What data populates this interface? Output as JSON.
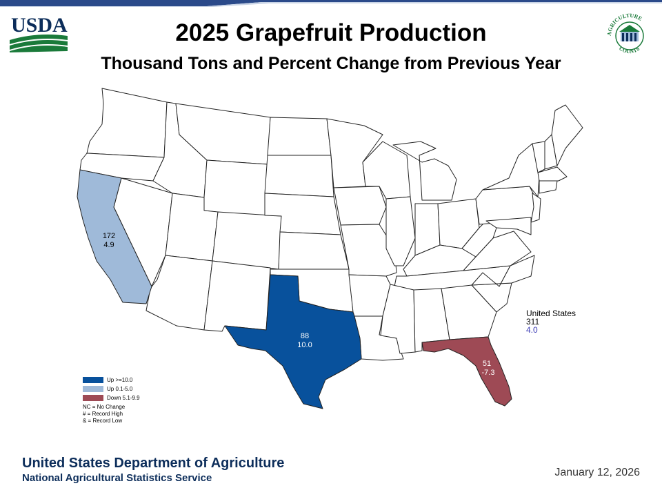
{
  "header": {
    "title": "2025 Grapefruit Production",
    "subtitle": "Thousand Tons and Percent Change from Previous Year",
    "usda_logo_text": "USDA",
    "seal_text_top": "AGRICULTURE",
    "seal_text_bottom": "COUNTS"
  },
  "colors": {
    "up_10": "#08519c",
    "up_0_5": "#9fbad9",
    "down_5_10": "#9e4a55",
    "usda_green": "#1a7a3a",
    "usda_blue": "#0c2d5a",
    "band_blue": "#2b4a8a"
  },
  "states": [
    {
      "name": "California",
      "production": "172",
      "change": "4.9",
      "category": "up_0_5"
    },
    {
      "name": "Texas",
      "production": "88",
      "change": "10.0",
      "category": "up_10"
    },
    {
      "name": "Florida",
      "production": "51",
      "change": "-7.3",
      "category": "down_5_10"
    }
  ],
  "us_total": {
    "label": "United States",
    "production": "311",
    "change": "4.0"
  },
  "legend": {
    "items": [
      {
        "label": "Up >=10.0",
        "color": "#08519c"
      },
      {
        "label": "Up 0.1-5.0",
        "color": "#9fbad9"
      },
      {
        "label": "Down 5.1-9.9",
        "color": "#9e4a55"
      }
    ],
    "notes": [
      "NC = No Change",
      "# = Record High",
      "& = Record Low"
    ]
  },
  "footer": {
    "department": "United States Department of Agriculture",
    "agency": "National Agricultural Statistics Service",
    "date": "January 12, 2026"
  }
}
